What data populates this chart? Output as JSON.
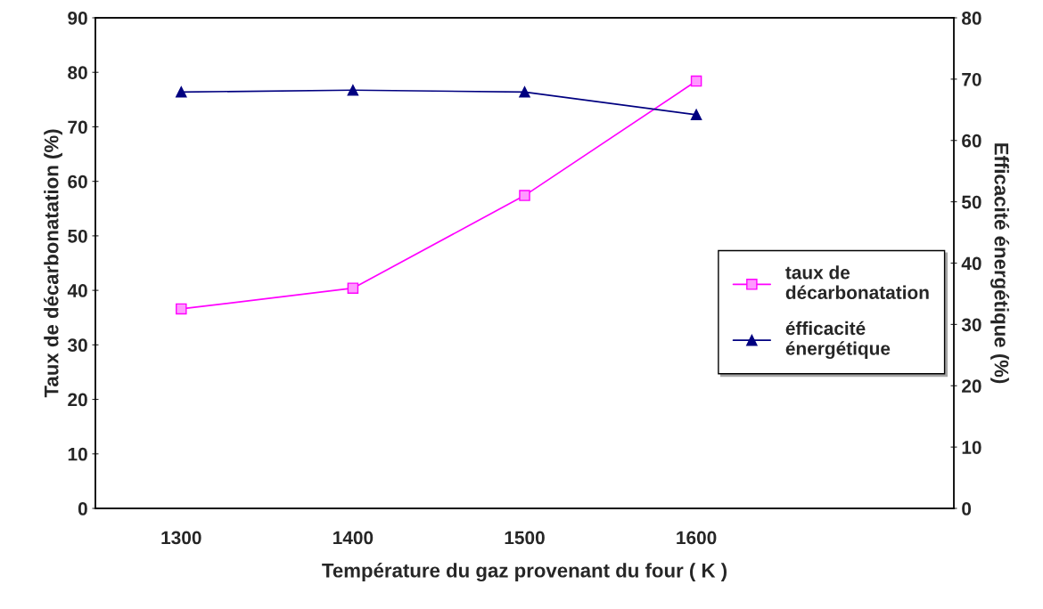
{
  "chart_data": {
    "type": "line",
    "xlabel": "Température du gaz provenant du four ( K )",
    "ylabel": "Taux de décarbonatation (%)",
    "y2label": "Efficacité énergétique (%)",
    "categories": [
      "1300",
      "1400",
      "1500",
      "1600",
      null
    ],
    "series": [
      {
        "name": "taux de\ndécarbonatation",
        "color": "#ff00ff",
        "marker": "square",
        "values": [
          36.6,
          40.4,
          57.4,
          78.4,
          null
        ]
      },
      {
        "name": "éfficacité\nénergétique",
        "color": "#000080",
        "marker": "triangle",
        "axis": "y2",
        "values": [
          67.9,
          68.2,
          67.9,
          64.2,
          null
        ]
      }
    ],
    "ylim": [
      0,
      90
    ],
    "yticks": [
      0,
      10,
      20,
      30,
      40,
      50,
      60,
      70,
      80,
      90
    ],
    "y2lim": [
      0,
      80
    ],
    "y2ticks": [
      0,
      10,
      20,
      30,
      40,
      50,
      60,
      70,
      80
    ],
    "grid": false,
    "legend": "right"
  }
}
